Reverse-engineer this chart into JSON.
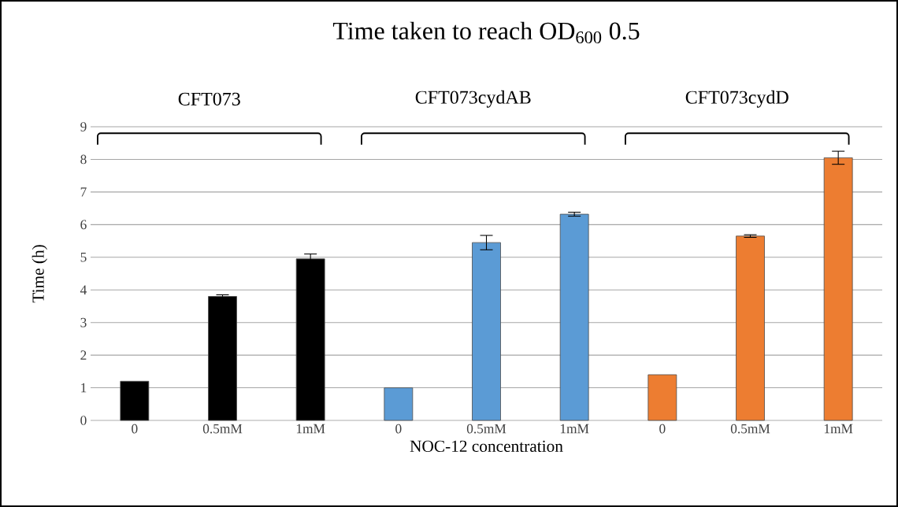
{
  "chart_data": {
    "type": "bar",
    "title": "Time taken to reach OD$_{600}$ 0.5",
    "xlabel": "NOC-12 concentration",
    "ylabel": "Time (h)",
    "categories": [
      "0",
      "0.5mM",
      "1mM",
      "0",
      "0.5mM",
      "1mM",
      "0",
      "0.5mM",
      "1mM"
    ],
    "values": [
      1.2,
      3.8,
      4.95,
      1.0,
      5.45,
      6.32,
      1.4,
      5.65,
      8.05
    ],
    "errors": [
      null,
      0.05,
      0.15,
      null,
      0.22,
      0.06,
      null,
      0.04,
      0.2
    ],
    "colors": [
      "#000000",
      "#000000",
      "#000000",
      "#5b9bd5",
      "#5b9bd5",
      "#5b9bd5",
      "#ed7d31",
      "#ed7d31",
      "#ed7d31"
    ],
    "annotations": [
      "CFT073",
      "CFT073cydAB",
      "CFT073cydD"
    ],
    "ylim": [
      0,
      9
    ],
    "yticks": [
      0,
      1,
      2,
      3,
      4,
      5,
      6,
      7,
      8,
      9
    ],
    "grid": true
  }
}
